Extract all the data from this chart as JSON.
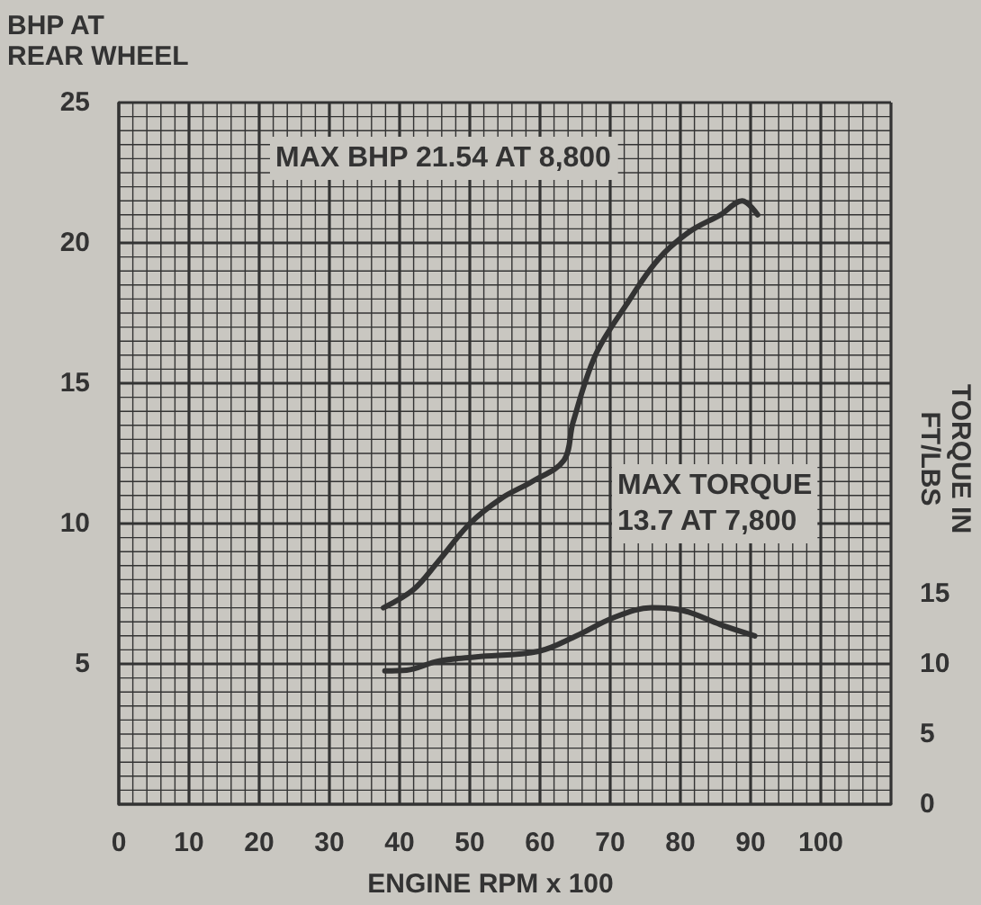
{
  "chart_data": {
    "type": "line",
    "xlabel": "ENGINE RPM x 100",
    "ylabel": "BHP AT\nREAR WHEEL",
    "y2label": "TORQUE IN\nFT/LBS",
    "annotations": [
      "MAX BHP 21.54 AT 8,800",
      "MAX TORQUE\n13.7 AT 7,800"
    ],
    "series": [
      {
        "color": "#333333",
        "x": [
          37.7,
          42,
          45.5,
          50,
          54.5,
          58.9,
          63.4,
          64.7,
          67.9,
          72.3,
          76.8,
          81.3,
          85.7,
          88.8,
          91
        ],
        "values": [
          7.0,
          7.65,
          8.65,
          10.0,
          10.9,
          11.5,
          12.25,
          13.6,
          16.0,
          17.8,
          19.4,
          20.4,
          21.0,
          21.5,
          21.0
        ]
      },
      {
        "color": "#333333",
        "axis": "y2",
        "x": [
          37.9,
          41,
          45.5,
          50.9,
          59.8,
          65.2,
          70.5,
          75.9,
          80.4,
          85.7,
          90.6
        ],
        "values": [
          9.5,
          9.55,
          10.2,
          10.5,
          10.9,
          12.0,
          13.3,
          14.0,
          13.8,
          12.8,
          12.0
        ]
      }
    ],
    "xlim": [
      0,
      110
    ],
    "xticks": [
      0,
      10,
      20,
      30,
      40,
      50,
      60,
      70,
      80,
      90,
      100
    ],
    "ylim": [
      0,
      25
    ],
    "yticks": [
      5,
      10,
      15,
      20,
      25
    ],
    "y2lim": [
      0,
      50
    ],
    "y2ticks": [
      0,
      5,
      10,
      15
    ],
    "grid": true,
    "line_style": "solid"
  }
}
